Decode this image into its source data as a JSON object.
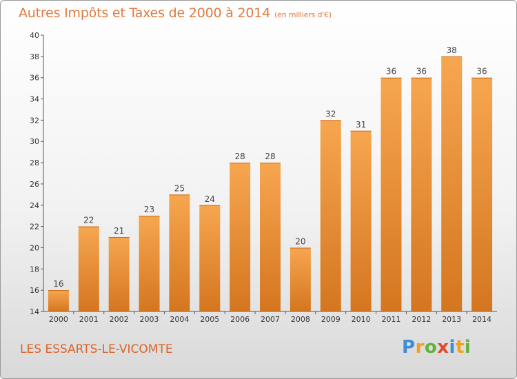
{
  "header": {
    "title": "Autres Impôts et Taxes de 2000 à 2014",
    "unit": "(en milliers d'€)"
  },
  "footer": {
    "commune": "LES ESSARTS-LE-VICOMTE",
    "logo": [
      "P",
      "r",
      "o",
      "x",
      "i",
      "t",
      "i"
    ]
  },
  "colors": {
    "bar_top": "#f7a650",
    "bar_bottom": "#d4761f",
    "title": "#e2793d"
  },
  "chart_data": {
    "type": "bar",
    "categories": [
      "2000",
      "2001",
      "2002",
      "2003",
      "2004",
      "2005",
      "2006",
      "2007",
      "2008",
      "2009",
      "2010",
      "2011",
      "2012",
      "2013",
      "2014"
    ],
    "values": [
      16,
      22,
      21,
      23,
      25,
      24,
      28,
      28,
      20,
      32,
      31,
      36,
      36,
      38,
      36
    ],
    "yticks": [
      14,
      16,
      18,
      20,
      22,
      24,
      26,
      28,
      30,
      32,
      34,
      36,
      38,
      40
    ],
    "ylim": [
      14,
      40
    ],
    "grid": false,
    "legend": "none",
    "data_labels": true
  }
}
